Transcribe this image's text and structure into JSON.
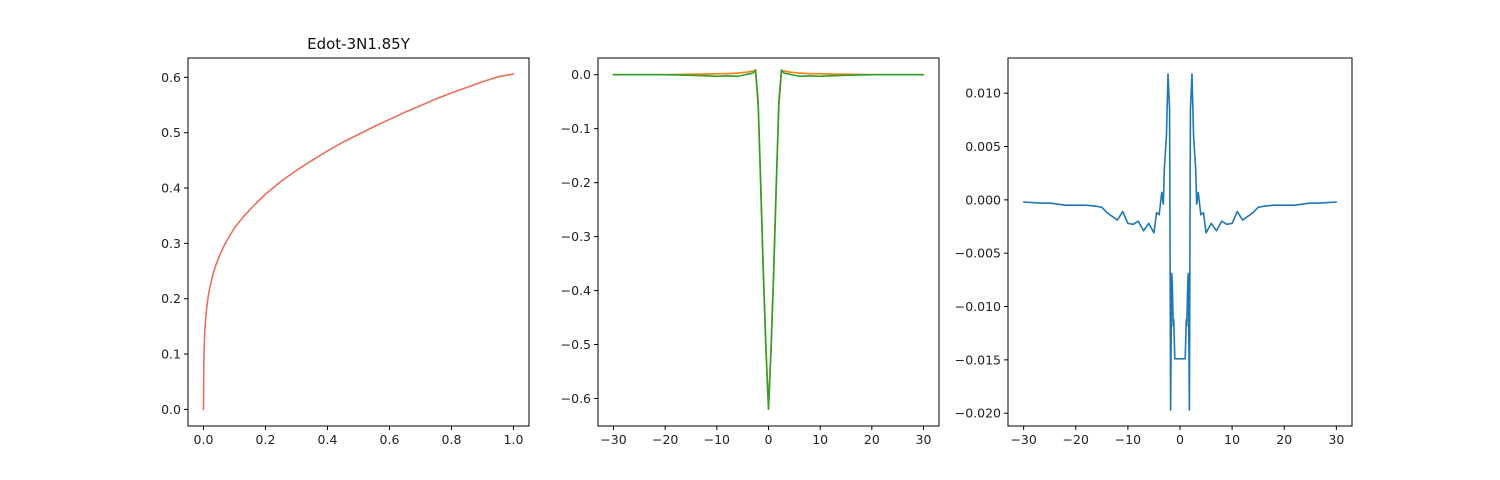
{
  "chart_data": [
    {
      "type": "line",
      "title": "Edot-3N1.85Y",
      "xlabel": "",
      "ylabel": "",
      "xlim": [
        -0.05,
        1.05
      ],
      "ylim": [
        -0.03,
        0.635
      ],
      "xticks": [
        0.0,
        0.2,
        0.4,
        0.6,
        0.8,
        1.0
      ],
      "xtick_labels": [
        "0.0",
        "0.2",
        "0.4",
        "0.6",
        "0.8",
        "1.0"
      ],
      "yticks": [
        0.0,
        0.1,
        0.2,
        0.3,
        0.4,
        0.5,
        0.6
      ],
      "ytick_labels": [
        "0.0",
        "0.1",
        "0.2",
        "0.3",
        "0.4",
        "0.5",
        "0.6"
      ],
      "grid": false,
      "series": [
        {
          "color": "#e8705a",
          "x": [
            0.0,
            0.001,
            0.002,
            0.004,
            0.007,
            0.01,
            0.015,
            0.02,
            0.03,
            0.04,
            0.05,
            0.07,
            0.1,
            0.13,
            0.16,
            0.2,
            0.25,
            0.3,
            0.35,
            0.4,
            0.45,
            0.5,
            0.55,
            0.6,
            0.65,
            0.7,
            0.75,
            0.8,
            0.85,
            0.9,
            0.95,
            1.0
          ],
          "y": [
            0.0,
            0.083,
            0.107,
            0.14,
            0.164,
            0.182,
            0.204,
            0.219,
            0.243,
            0.261,
            0.276,
            0.3,
            0.328,
            0.349,
            0.367,
            0.389,
            0.412,
            0.432,
            0.45,
            0.467,
            0.483,
            0.497,
            0.511,
            0.524,
            0.537,
            0.549,
            0.561,
            0.572,
            0.582,
            0.592,
            0.601,
            0.606
          ]
        }
      ]
    },
    {
      "type": "line",
      "title": "",
      "xlabel": "",
      "ylabel": "",
      "xlim": [
        -33,
        33
      ],
      "ylim": [
        -0.651,
        0.031
      ],
      "xticks": [
        -30,
        -20,
        -10,
        0,
        10,
        20,
        30
      ],
      "xtick_labels": [
        "−30",
        "−20",
        "−10",
        "0",
        "10",
        "20",
        "30"
      ],
      "yticks": [
        0.0,
        -0.1,
        -0.2,
        -0.3,
        -0.4,
        -0.5,
        -0.6
      ],
      "ytick_labels": [
        "0.0",
        "−0.1",
        "−0.2",
        "−0.3",
        "−0.4",
        "−0.5",
        "−0.6"
      ],
      "grid": false,
      "series": [
        {
          "color": "#ff7f0e",
          "x": [
            -30,
            -25,
            -20,
            -15,
            -12,
            -10,
            -8,
            -6,
            -5,
            -4,
            -3,
            -2.5,
            -2,
            -1.5,
            -1,
            -0.5,
            0,
            0.5,
            1,
            1.5,
            2,
            2.5,
            3,
            4,
            5,
            6,
            8,
            10,
            12,
            15,
            20,
            25,
            30
          ],
          "y": [
            0.0,
            0.0,
            0.0,
            0.001,
            0.001,
            0.002,
            0.002,
            0.003,
            0.004,
            0.005,
            0.007,
            0.005,
            -0.06,
            -0.2,
            -0.36,
            -0.5,
            -0.62,
            -0.5,
            -0.36,
            -0.2,
            -0.06,
            0.005,
            0.007,
            0.005,
            0.004,
            0.003,
            0.002,
            0.002,
            0.001,
            0.001,
            0.0,
            0.0,
            0.0
          ]
        },
        {
          "color": "#2ca02c",
          "x": [
            -30,
            -25,
            -20,
            -15,
            -12,
            -10,
            -8,
            -6,
            -5,
            -4,
            -3,
            -2.5,
            -2,
            -1.5,
            -1,
            -0.5,
            0,
            0.5,
            1,
            1.5,
            2,
            2.5,
            3,
            4,
            5,
            6,
            8,
            10,
            12,
            15,
            20,
            25,
            30
          ],
          "y": [
            0.0,
            0.0,
            0.0,
            -0.001,
            -0.002,
            -0.003,
            -0.002,
            -0.003,
            -0.001,
            0.001,
            0.003,
            0.009,
            -0.05,
            -0.21,
            -0.37,
            -0.51,
            -0.62,
            -0.51,
            -0.37,
            -0.21,
            -0.05,
            0.009,
            0.003,
            0.001,
            -0.001,
            -0.003,
            -0.002,
            -0.003,
            -0.002,
            -0.001,
            0.0,
            0.0,
            0.0
          ]
        }
      ]
    },
    {
      "type": "line",
      "title": "",
      "xlabel": "",
      "ylabel": "",
      "xlim": [
        -33,
        33
      ],
      "ylim": [
        -0.0212,
        0.0133
      ],
      "xticks": [
        -30,
        -20,
        -10,
        0,
        10,
        20,
        30
      ],
      "xtick_labels": [
        "−30",
        "−20",
        "−10",
        "0",
        "10",
        "20",
        "30"
      ],
      "yticks": [
        0.01,
        0.005,
        0.0,
        -0.005,
        -0.01,
        -0.015,
        -0.02
      ],
      "ytick_labels": [
        "0.010",
        "0.005",
        "0.000",
        "−0.005",
        "−0.010",
        "−0.015",
        "−0.020"
      ],
      "grid": false,
      "series": [
        {
          "color": "#1f77b4",
          "x": [
            -30,
            -27,
            -25,
            -22,
            -20,
            -18,
            -16,
            -15,
            -14,
            -12,
            -11,
            -10,
            -9,
            -8,
            -7,
            -6,
            -5,
            -4.5,
            -4,
            -3.5,
            -3.2,
            -3,
            -2.6,
            -2.3,
            -2,
            -1.8,
            -1.6,
            -1.5,
            -1.3,
            -1.2,
            -1,
            -0.8,
            -0.6,
            -0.4,
            -0.2,
            0,
            0.2,
            0.4,
            0.6,
            0.8,
            1,
            1.2,
            1.3,
            1.5,
            1.6,
            1.8,
            2,
            2.3,
            2.6,
            3,
            3.2,
            3.5,
            4,
            4.5,
            5,
            6,
            7,
            8,
            9,
            10,
            11,
            12,
            14,
            15,
            16,
            18,
            20,
            22,
            25,
            27,
            30
          ],
          "y": [
            -0.0002,
            -0.0003,
            -0.0003,
            -0.0005,
            -0.0005,
            -0.0005,
            -0.0006,
            -0.0007,
            -0.0012,
            -0.0019,
            -0.0011,
            -0.0022,
            -0.0023,
            -0.002,
            -0.0029,
            -0.0022,
            -0.0031,
            -0.0012,
            -0.0014,
            0.0007,
            -0.0004,
            0.003,
            0.006,
            0.0118,
            0.0085,
            -0.0197,
            -0.0069,
            -0.0075,
            -0.0118,
            -0.0112,
            -0.0149,
            -0.0149,
            -0.0149,
            -0.0149,
            -0.0149,
            -0.0149,
            -0.0149,
            -0.0149,
            -0.0149,
            -0.0149,
            -0.0149,
            -0.0112,
            -0.0118,
            -0.0075,
            -0.0069,
            -0.0197,
            0.0085,
            0.0118,
            0.006,
            0.003,
            -0.0004,
            0.0007,
            -0.0014,
            -0.0012,
            -0.0031,
            -0.0022,
            -0.0029,
            -0.002,
            -0.0023,
            -0.0022,
            -0.0011,
            -0.0019,
            -0.0012,
            -0.0007,
            -0.0006,
            -0.0005,
            -0.0005,
            -0.0005,
            -0.0003,
            -0.0003,
            -0.0002
          ]
        }
      ]
    }
  ]
}
